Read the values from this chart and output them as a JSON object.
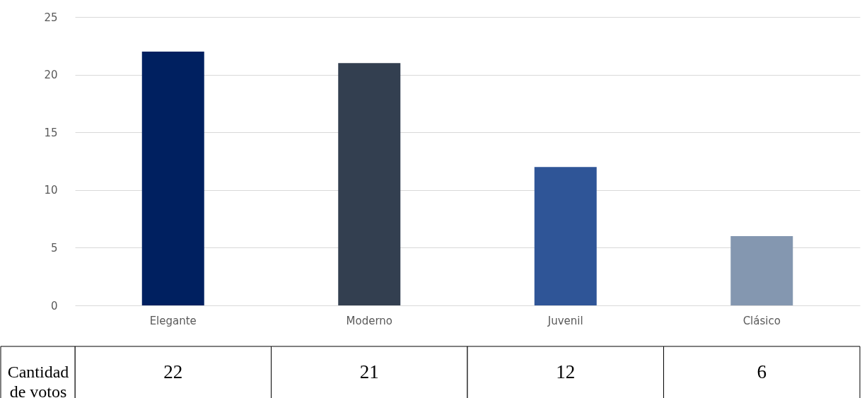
{
  "chart_data": {
    "type": "bar",
    "categories": [
      "Elegante",
      "Moderno",
      "Juvenil",
      "Clásico"
    ],
    "series": [
      {
        "name": "Cantidad de votos",
        "colors": [
          "#002060",
          "#333f50",
          "#2f5597",
          "#8497b0"
        ],
        "values": [
          22,
          21,
          12,
          6
        ]
      }
    ],
    "ylim": [
      0,
      25
    ],
    "yticks": [
      0,
      5,
      10,
      15,
      20,
      25
    ],
    "grid": "y",
    "data_labels": true
  }
}
